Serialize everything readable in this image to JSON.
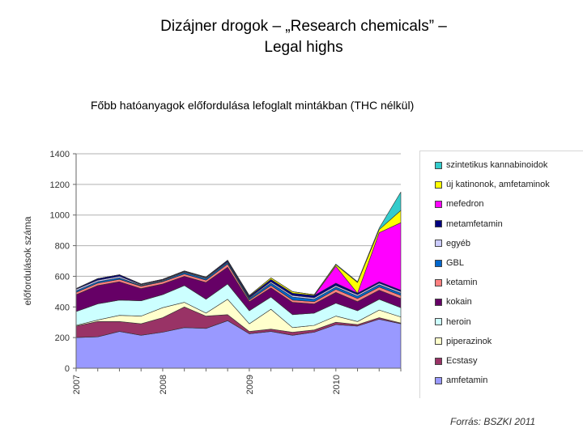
{
  "slide": {
    "title_line1": "Dizájner drogok – „Research chemicals” –",
    "title_line2": "Legal highs",
    "subtitle": "Főbb hatóanyagok előfordulása lefoglalt mintákban (THC nélkül)",
    "source": "Forrás: BSZKI 2011"
  },
  "chart_data": {
    "type": "area",
    "stacked": true,
    "title": "Főbb hatóanyagok előfordulása lefoglalt mintákban (THC nélkül)",
    "xlabel": "",
    "ylabel": "előfordulások száma",
    "ylim": [
      0,
      1400
    ],
    "yticks": [
      0,
      200,
      400,
      600,
      800,
      1000,
      1200,
      1400
    ],
    "grid": true,
    "legend_position": "right",
    "x": [
      "2007 Q1",
      "2007 Q2",
      "2007 Q3",
      "2007 Q4",
      "2008 Q1",
      "2008 Q2",
      "2008 Q3",
      "2008 Q4",
      "2009 Q1",
      "2009 Q2",
      "2009 Q3",
      "2009 Q4",
      "2010 Q1",
      "2010 Q2",
      "2010 Q3",
      "2010 Q4"
    ],
    "xtick_labels": [
      {
        "label": "2007",
        "index": 0
      },
      {
        "label": "2008",
        "index": 4
      },
      {
        "label": "2009",
        "index": 8
      },
      {
        "label": "2010",
        "index": 12
      }
    ],
    "series": [
      {
        "name": "amfetamin",
        "color": "#9999ff",
        "values": [
          200,
          205,
          240,
          215,
          235,
          265,
          260,
          310,
          225,
          240,
          215,
          235,
          285,
          275,
          320,
          290
        ]
      },
      {
        "name": "Ecstasy",
        "color": "#993366",
        "values": [
          75,
          100,
          65,
          75,
          95,
          135,
          80,
          40,
          15,
          15,
          20,
          15,
          15,
          10,
          10,
          5
        ]
      },
      {
        "name": "piperazinok",
        "color": "#ffffcc",
        "values": [
          5,
          10,
          40,
          50,
          65,
          30,
          20,
          100,
          50,
          130,
          30,
          30,
          40,
          20,
          50,
          40
        ]
      },
      {
        "name": "heroin",
        "color": "#ccffff",
        "values": [
          90,
          105,
          100,
          100,
          85,
          110,
          90,
          100,
          85,
          80,
          85,
          80,
          85,
          70,
          70,
          60
        ]
      },
      {
        "name": "kokain",
        "color": "#660066",
        "values": [
          110,
          120,
          120,
          80,
          70,
          60,
          110,
          110,
          60,
          60,
          80,
          60,
          70,
          60,
          60,
          60
        ]
      },
      {
        "name": "ketamin",
        "color": "#ff8080",
        "values": [
          15,
          15,
          15,
          15,
          15,
          15,
          15,
          20,
          10,
          15,
          15,
          15,
          20,
          20,
          20,
          20
        ]
      },
      {
        "name": "GBL",
        "color": "#0066cc",
        "values": [
          10,
          10,
          10,
          5,
          5,
          10,
          10,
          10,
          10,
          15,
          20,
          15,
          15,
          15,
          15,
          15
        ]
      },
      {
        "name": "egyéb",
        "color": "#ccccff",
        "values": [
          10,
          10,
          10,
          5,
          5,
          5,
          5,
          5,
          5,
          10,
          10,
          10,
          10,
          10,
          10,
          10
        ]
      },
      {
        "name": "metamfetamin",
        "color": "#000080",
        "values": [
          5,
          10,
          10,
          5,
          5,
          5,
          5,
          10,
          10,
          15,
          15,
          15,
          15,
          10,
          10,
          10
        ]
      },
      {
        "name": "mefedron",
        "color": "#ff00ff",
        "values": [
          0,
          0,
          0,
          0,
          0,
          0,
          0,
          0,
          0,
          0,
          0,
          0,
          110,
          0,
          320,
          440
        ]
      },
      {
        "name": "új katinonok, amfetaminok",
        "color": "#ffff00",
        "values": [
          0,
          0,
          0,
          0,
          0,
          0,
          0,
          0,
          5,
          10,
          10,
          5,
          10,
          70,
          20,
          80
        ]
      },
      {
        "name": "szintetikus kannabinoidok",
        "color": "#33cccc",
        "values": [
          0,
          0,
          0,
          0,
          0,
          0,
          0,
          0,
          0,
          0,
          0,
          0,
          5,
          5,
          10,
          120
        ]
      }
    ],
    "legend_order": [
      "szintetikus kannabinoidok",
      "új katinonok, amfetaminok",
      "mefedron",
      "metamfetamin",
      "egyéb",
      "GBL",
      "ketamin",
      "kokain",
      "heroin",
      "piperazinok",
      "Ecstasy",
      "amfetamin"
    ]
  }
}
